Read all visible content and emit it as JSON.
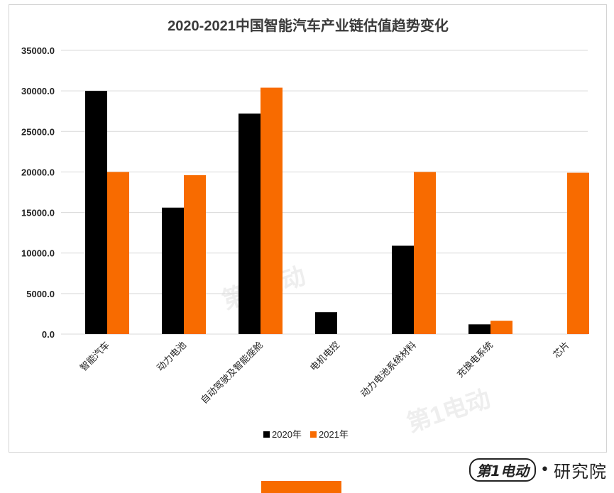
{
  "colors": {
    "series_2020": "#000000",
    "series_2021": "#f86b00",
    "grid": "#d9d9d9",
    "accent_bar": "#f86b00"
  },
  "watermark": {
    "text": "第1电动"
  },
  "footer": {
    "brand": "第1电动",
    "separator": "•",
    "institute": "研究院"
  },
  "chart_data": {
    "type": "bar",
    "title": "2020-2021中国智能汽车产业链估值趋势变化",
    "xlabel": "",
    "ylabel": "",
    "ylim": [
      0,
      35000
    ],
    "yticks": [
      "35000.0",
      "30000.0",
      "25000.0",
      "20000.0",
      "15000.0",
      "10000.0",
      "5000.0",
      "0.0"
    ],
    "grid": true,
    "legend_position": "bottom",
    "categories": [
      "智能汽车",
      "动力电池",
      "自动驾驶及智能座舱",
      "电机电控",
      "动力电池系统材料",
      "充换电系统",
      "芯片"
    ],
    "series": [
      {
        "name": "2020年",
        "values": [
          30000,
          15600,
          27200,
          2700,
          10900,
          1200,
          0
        ]
      },
      {
        "name": "2021年",
        "values": [
          20000,
          19600,
          30400,
          0,
          20000,
          1650,
          19900
        ]
      }
    ]
  }
}
